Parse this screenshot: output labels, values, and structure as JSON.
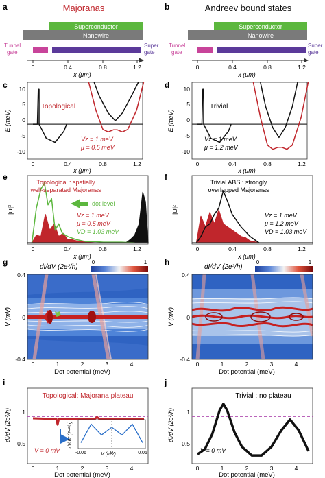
{
  "panels": {
    "a": {
      "letter": "a",
      "title": "Majoranas",
      "superconductor": "Superconductor",
      "nanowire": "Nanowire",
      "tunnel_gate": [
        "Tunnel",
        "gate"
      ],
      "super_gate": [
        "Super",
        "gate"
      ],
      "xticks": [
        "0",
        "0.4",
        "0.8",
        "1.2"
      ],
      "xlabel": "x (μm)"
    },
    "b": {
      "letter": "b",
      "title": "Andreev bound states",
      "superconductor": "Superconductor",
      "nanowire": "Nanowire",
      "tunnel_gate": [
        "Tunnel",
        "gate"
      ],
      "super_gate": [
        "Super",
        "gate"
      ],
      "xticks": [
        "0",
        "0.4",
        "0.8",
        "1.2"
      ],
      "xlabel": "x (μm)"
    },
    "c": {
      "letter": "c",
      "label": "Topological",
      "ylabel": "E (meV)",
      "yticks": [
        "10",
        "5",
        "0",
        "-5",
        "-10"
      ],
      "xticks": [
        "0",
        "0.4",
        "0.8",
        "1.2"
      ],
      "xlabel": "x (μm)",
      "params": [
        "Vz = 1 meV",
        "μ = 0.5 meV"
      ]
    },
    "d": {
      "letter": "d",
      "label": "Trivial",
      "ylabel": "E (meV)",
      "yticks": [
        "10",
        "5",
        "0",
        "-5",
        "-10"
      ],
      "xticks": [
        "0",
        "0.4",
        "0.8",
        "1.2"
      ],
      "xlabel": "x (μm)",
      "params": [
        "Vz = 1 meV",
        "μ = 1.2 meV"
      ]
    },
    "e": {
      "letter": "e",
      "label1": "Topological : spatially",
      "label2": "well-separated Majoranas",
      "dot_level": "dot level",
      "ylabel": "|ψ|²",
      "xticks": [
        "0",
        "0.4",
        "0.8",
        "1.2"
      ],
      "xlabel": "x (μm)",
      "params": [
        "Vz = 1 meV",
        "μ = 0.5 meV",
        "VD = 1.03 meV"
      ]
    },
    "f": {
      "letter": "f",
      "label1": "Trivial ABS : strongly",
      "label2": "overlapped Majoranas",
      "ylabel": "|ψ|²",
      "xticks": [
        "0",
        "0.4",
        "0.8",
        "1.2"
      ],
      "xlabel": "x (μm)",
      "params": [
        "Vz = 1 meV",
        "μ = 1.2 meV",
        "VD = 1.03 meV"
      ]
    },
    "g": {
      "letter": "g",
      "cbar_label": "dI/dV (2e²/h)",
      "cbar_min": "0",
      "cbar_max": "1",
      "ylabel": "V (mV)",
      "yticks": [
        "0.4",
        "0",
        "-0.4"
      ],
      "xticks": [
        "0",
        "1",
        "2",
        "3",
        "4"
      ],
      "xlabel": "Dot potential (meV)"
    },
    "h": {
      "letter": "h",
      "cbar_label": "dI/dV (2e²/h)",
      "cbar_min": "0",
      "cbar_max": "1",
      "ylabel": "V (mV)",
      "yticks": [
        "0.4",
        "0",
        "-0.4"
      ],
      "xticks": [
        "0",
        "1",
        "2",
        "3",
        "4"
      ],
      "xlabel": "Dot potential (meV)"
    },
    "i": {
      "letter": "i",
      "title": "Topological: Majorana plateau",
      "ylabel": "dI/dV (2e²/h)",
      "yticks": [
        "1",
        "0.5"
      ],
      "xticks": [
        "0",
        "1",
        "2",
        "3",
        "4"
      ],
      "xlabel": "Dot potential (meV)",
      "vlabel": "V = 0 mV",
      "inset_ylabel": "dI/dV (2e²/h)",
      "inset_xticks": [
        "-0.06",
        "0",
        "0.06"
      ],
      "inset_xlabel": "V (mV)"
    },
    "j": {
      "letter": "j",
      "title": "Trivial : no plateau",
      "ylabel": "dI/dV (2e²/h)",
      "yticks": [
        "1",
        "0.5"
      ],
      "xticks": [
        "0",
        "1",
        "2",
        "3",
        "4"
      ],
      "xlabel": "Dot potential (meV)",
      "vlabel": "V = 0 mV"
    }
  },
  "colors": {
    "red": "#c0262c",
    "green": "#5cb73e",
    "purple": "#5b3a9a",
    "pink": "#c8449a",
    "grey": "#7a7a7a",
    "axis": "#333333"
  },
  "chart_data": [
    {
      "type": "line",
      "panel": "c",
      "xlim": [
        -0.05,
        1.25
      ],
      "ylim": [
        -10,
        12
      ],
      "series": [
        {
          "x": [
            -0.05,
            0.0,
            0.01,
            0.02,
            0.02,
            0.05,
            0.1,
            0.2,
            0.3,
            0.33
          ],
          "y": [
            0,
            0,
            10,
            10,
            0,
            -1.5,
            -4,
            -5.2,
            -2,
            0
          ]
        },
        {
          "x": [
            0.64,
            0.7,
            0.8,
            0.88,
            0.96,
            1.06,
            1.14
          ],
          "y": [
            12,
            8,
            3.2,
            1,
            3.2,
            8,
            12
          ]
        },
        {
          "x": [
            0.58,
            0.66,
            0.74,
            0.8,
            0.86,
            0.9,
            0.96,
            1.02,
            1.12,
            1.2
          ],
          "y": [
            12,
            4,
            -1.5,
            -2.2,
            -1.6,
            -1.6,
            -2.2,
            -1.5,
            4,
            12
          ]
        }
      ]
    },
    {
      "type": "line",
      "panel": "d",
      "xlim": [
        -0.05,
        1.25
      ],
      "ylim": [
        -10,
        12
      ],
      "series": [
        {
          "x": [
            -0.05,
            0.0,
            0.01,
            0.02,
            0.02,
            0.05,
            0.1,
            0.2,
            0.3,
            0.33
          ],
          "y": [
            0,
            0,
            10,
            10,
            0,
            -1.5,
            -4,
            -5.2,
            -2,
            0
          ]
        },
        {
          "x": [
            0.66,
            0.72,
            0.8,
            0.87,
            0.94,
            1.02,
            1.08
          ],
          "y": [
            12,
            5,
            -1,
            -3.8,
            -1,
            5,
            12
          ]
        },
        {
          "x": [
            0.58,
            0.66,
            0.74,
            0.8,
            0.86,
            0.9,
            0.96,
            1.02,
            1.12,
            1.2
          ],
          "y": [
            12,
            2,
            -6,
            -7.2,
            -6.6,
            -6.6,
            -7.2,
            -6,
            2,
            12
          ]
        }
      ]
    },
    {
      "type": "area",
      "panel": "e",
      "xlim": [
        -0.05,
        1.3
      ],
      "series": [
        {
          "name": "dot level",
          "x": [
            0.0,
            0.05,
            0.1,
            0.14,
            0.18,
            0.22,
            0.26,
            0.3,
            0.34,
            0.4,
            0.5,
            0.6,
            0.7,
            0.8,
            1.0,
            1.15
          ],
          "y": [
            0,
            0.55,
            0.85,
            0.95,
            0.6,
            0.7,
            0.2,
            0.3,
            0.15,
            0.1,
            0.05,
            0.02,
            0.02,
            0.01,
            0.01,
            0
          ]
        },
        {
          "x": [
            0.0,
            0.05,
            0.1,
            0.15,
            0.2,
            0.25,
            0.3,
            0.35,
            0.4,
            0.45,
            0.5,
            0.55,
            0.6,
            0.7
          ],
          "y": [
            0,
            0.12,
            0.1,
            0.45,
            0.2,
            0.3,
            0.1,
            0.15,
            0.05,
            0.05,
            0.03,
            0.02,
            0.01,
            0
          ]
        },
        {
          "x": [
            1.05,
            1.1,
            1.15,
            1.2,
            1.24,
            1.27,
            1.3
          ],
          "y": [
            0,
            0.05,
            0.12,
            0.3,
            0.8,
            0.65,
            0
          ]
        }
      ]
    },
    {
      "type": "area",
      "panel": "f",
      "xlim": [
        -0.05,
        1.3
      ],
      "series": [
        {
          "x": [
            0.0,
            0.05,
            0.1,
            0.15,
            0.2,
            0.25,
            0.3,
            0.35,
            0.4,
            0.45,
            0.5,
            0.55,
            0.6,
            0.7
          ],
          "y": [
            0,
            0.42,
            0.25,
            0.48,
            0.3,
            0.52,
            0.3,
            0.25,
            0.2,
            0.15,
            0.1,
            0.08,
            0.03,
            0
          ]
        },
        {
          "x": [
            0.0,
            0.05,
            0.1,
            0.15,
            0.2,
            0.25,
            0.3,
            0.35,
            0.4,
            0.5,
            0.6,
            0.7
          ],
          "y": [
            0,
            0.1,
            0.25,
            0.3,
            0.45,
            0.55,
            0.82,
            0.65,
            0.45,
            0.25,
            0.1,
            0
          ]
        }
      ]
    },
    {
      "type": "line",
      "panel": "i",
      "xlim": [
        0,
        4.5
      ],
      "ylim": [
        0.25,
        1.45
      ],
      "series": [
        {
          "x": [
            0,
            0.8,
            0.95,
            1.0,
            1.05,
            1.2,
            2.5,
            2.6,
            2.7,
            4.5
          ],
          "y": [
            0.97,
            0.96,
            0.96,
            0.87,
            0.96,
            0.96,
            0.96,
            0.99,
            0.96,
            0.96
          ]
        },
        {
          "name": "inset",
          "x": [
            -0.06,
            -0.04,
            -0.02,
            0.0,
            0.02,
            0.04,
            0.06
          ],
          "y": [
            0.3,
            0.9,
            0.55,
            0.8,
            0.55,
            0.9,
            0.3
          ]
        }
      ]
    },
    {
      "type": "line",
      "panel": "j",
      "xlim": [
        0,
        4.5
      ],
      "ylim": [
        0.25,
        1.45
      ],
      "series": [
        {
          "x": [
            0,
            0.3,
            0.6,
            0.9,
            1.05,
            1.2,
            1.5,
            1.8,
            2.2,
            2.6,
            3.0,
            3.4,
            3.75,
            4.1,
            4.5
          ],
          "y": [
            0.4,
            0.48,
            0.72,
            1.1,
            1.2,
            1.1,
            0.75,
            0.52,
            0.38,
            0.38,
            0.52,
            0.78,
            0.95,
            0.78,
            0.45
          ]
        }
      ]
    }
  ]
}
